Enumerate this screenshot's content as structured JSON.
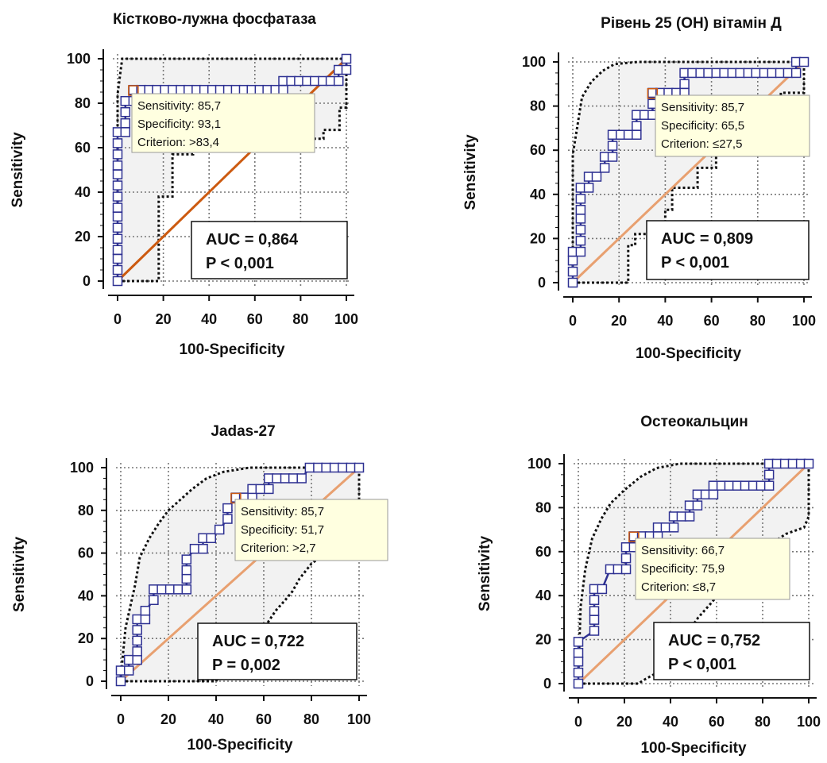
{
  "chart_data": [
    {
      "type": "line",
      "title": "Кістково-лужна фосфатаза",
      "xlabel": "100-Specificity",
      "ylabel": "Sensitivity",
      "xlim": [
        0,
        100
      ],
      "ylim": [
        0,
        100
      ],
      "ticks": [
        "0",
        "20",
        "40",
        "60",
        "80",
        "100"
      ],
      "grid": true,
      "roc": [
        [
          0,
          0
        ],
        [
          0,
          5
        ],
        [
          0,
          10
        ],
        [
          0,
          14
        ],
        [
          0,
          19
        ],
        [
          0,
          24
        ],
        [
          0,
          29
        ],
        [
          0,
          33
        ],
        [
          0,
          38
        ],
        [
          0,
          43
        ],
        [
          0,
          48
        ],
        [
          0,
          52
        ],
        [
          0,
          57
        ],
        [
          0,
          62
        ],
        [
          0,
          67
        ],
        [
          3.4,
          67
        ],
        [
          3.4,
          71
        ],
        [
          3.4,
          76
        ],
        [
          3.4,
          81
        ],
        [
          6.9,
          81
        ],
        [
          6.9,
          86
        ],
        [
          10.3,
          86
        ],
        [
          13.8,
          86
        ],
        [
          17.2,
          86
        ],
        [
          20.7,
          86
        ],
        [
          24.1,
          86
        ],
        [
          27.6,
          86
        ],
        [
          31,
          86
        ],
        [
          34.5,
          86
        ],
        [
          37.9,
          86
        ],
        [
          41.4,
          86
        ],
        [
          44.8,
          86
        ],
        [
          48.3,
          86
        ],
        [
          51.7,
          86
        ],
        [
          55.2,
          86
        ],
        [
          58.6,
          86
        ],
        [
          62.1,
          86
        ],
        [
          65.5,
          86
        ],
        [
          69,
          86
        ],
        [
          72.4,
          86
        ],
        [
          72.4,
          90
        ],
        [
          75.9,
          90
        ],
        [
          79.3,
          90
        ],
        [
          82.8,
          90
        ],
        [
          86.2,
          90
        ],
        [
          89.7,
          90
        ],
        [
          93.1,
          90
        ],
        [
          96.6,
          90
        ],
        [
          96.6,
          95
        ],
        [
          100,
          95
        ],
        [
          100,
          100
        ]
      ],
      "ci_upper": [
        [
          0,
          31
        ],
        [
          0,
          84
        ],
        [
          2,
          100
        ],
        [
          100,
          100
        ]
      ],
      "ci_lower": [
        [
          0,
          0
        ],
        [
          18,
          0
        ],
        [
          18,
          38
        ],
        [
          24,
          38
        ],
        [
          24,
          57
        ],
        [
          33,
          57
        ],
        [
          33,
          60
        ],
        [
          72,
          60
        ],
        [
          72,
          64
        ],
        [
          90,
          64
        ],
        [
          90,
          68
        ],
        [
          97,
          68
        ],
        [
          97,
          78
        ],
        [
          100,
          78
        ],
        [
          100,
          100
        ]
      ],
      "tooltip": {
        "x": 6.9,
        "y": 85.7,
        "lines": [
          "Sensitivity: 85,7",
          "Specificity: 93,1",
          "Criterion: >83,4"
        ]
      },
      "auc_lines": [
        "AUC = 0,864",
        "P < 0,001"
      ]
    },
    {
      "type": "line",
      "title": "Рівень 25 (ОН) вітамін Д",
      "xlabel": "100-Specificity",
      "ylabel": "Sensitivity",
      "xlim": [
        0,
        100
      ],
      "ylim": [
        0,
        100
      ],
      "ticks": [
        "0",
        "20",
        "40",
        "60",
        "80",
        "100"
      ],
      "grid": true,
      "roc": [
        [
          0,
          0
        ],
        [
          0,
          5
        ],
        [
          0,
          10
        ],
        [
          0,
          14
        ],
        [
          3.4,
          14
        ],
        [
          3.4,
          19
        ],
        [
          3.4,
          24
        ],
        [
          3.4,
          29
        ],
        [
          3.4,
          33
        ],
        [
          3.4,
          38
        ],
        [
          3.4,
          43
        ],
        [
          6.9,
          43
        ],
        [
          6.9,
          48
        ],
        [
          10.3,
          48
        ],
        [
          13.8,
          52
        ],
        [
          13.8,
          57
        ],
        [
          17.2,
          57
        ],
        [
          17.2,
          62
        ],
        [
          17.2,
          67
        ],
        [
          20.7,
          67
        ],
        [
          24.1,
          67
        ],
        [
          27.6,
          67
        ],
        [
          27.6,
          71
        ],
        [
          27.6,
          76
        ],
        [
          31,
          76
        ],
        [
          34.5,
          76
        ],
        [
          34.5,
          81
        ],
        [
          34.5,
          86
        ],
        [
          37.9,
          86
        ],
        [
          41.4,
          86
        ],
        [
          44.8,
          86
        ],
        [
          48.3,
          86
        ],
        [
          48.3,
          90
        ],
        [
          48.3,
          95
        ],
        [
          51.7,
          95
        ],
        [
          55.2,
          95
        ],
        [
          58.6,
          95
        ],
        [
          62.1,
          95
        ],
        [
          65.5,
          95
        ],
        [
          69,
          95
        ],
        [
          72.4,
          95
        ],
        [
          75.9,
          95
        ],
        [
          79.3,
          95
        ],
        [
          82.8,
          95
        ],
        [
          86.2,
          95
        ],
        [
          89.7,
          95
        ],
        [
          93.1,
          95
        ],
        [
          96.6,
          95
        ],
        [
          96.6,
          100
        ],
        [
          100,
          100
        ]
      ],
      "ci_upper": [
        [
          0,
          7
        ],
        [
          0,
          58
        ],
        [
          4,
          84
        ],
        [
          8,
          91
        ],
        [
          13,
          96
        ],
        [
          18,
          99
        ],
        [
          28,
          100
        ],
        [
          100,
          100
        ]
      ],
      "ci_lower": [
        [
          0,
          0
        ],
        [
          24,
          0
        ],
        [
          24,
          17
        ],
        [
          27,
          17
        ],
        [
          27,
          22
        ],
        [
          40,
          22
        ],
        [
          40,
          33
        ],
        [
          43,
          33
        ],
        [
          43,
          43
        ],
        [
          54,
          43
        ],
        [
          54,
          52
        ],
        [
          62,
          52
        ],
        [
          62,
          63
        ],
        [
          67,
          63
        ],
        [
          67,
          71
        ],
        [
          76,
          71
        ],
        [
          76,
          78
        ],
        [
          90,
          78
        ],
        [
          90,
          86
        ],
        [
          100,
          86
        ],
        [
          100,
          100
        ]
      ],
      "tooltip": {
        "x": 34.5,
        "y": 85.7,
        "lines": [
          "Sensitivity: 85,7",
          "Specificity: 65,5",
          "Criterion: ≤27,5"
        ]
      },
      "auc_lines": [
        "AUC = 0,809",
        "P < 0,001"
      ]
    },
    {
      "type": "line",
      "title": "Jadas-27",
      "xlabel": "100-Specificity",
      "ylabel": "Sensitivity",
      "xlim": [
        0,
        100
      ],
      "ylim": [
        0,
        100
      ],
      "ticks": [
        "0",
        "20",
        "40",
        "60",
        "80",
        "100"
      ],
      "grid": true,
      "roc": [
        [
          0,
          0
        ],
        [
          0,
          5
        ],
        [
          3.4,
          5
        ],
        [
          3.4,
          10
        ],
        [
          6.9,
          10
        ],
        [
          6.9,
          14
        ],
        [
          6.9,
          19
        ],
        [
          6.9,
          24
        ],
        [
          6.9,
          29
        ],
        [
          10.3,
          29
        ],
        [
          10.3,
          33
        ],
        [
          13.8,
          38
        ],
        [
          13.8,
          43
        ],
        [
          17.2,
          43
        ],
        [
          20.7,
          43
        ],
        [
          24.1,
          43
        ],
        [
          27.6,
          43
        ],
        [
          27.6,
          48
        ],
        [
          27.6,
          52
        ],
        [
          27.6,
          57
        ],
        [
          31,
          62
        ],
        [
          34.5,
          62
        ],
        [
          34.5,
          67
        ],
        [
          37.9,
          67
        ],
        [
          41.4,
          71
        ],
        [
          44.8,
          76
        ],
        [
          44.8,
          81
        ],
        [
          48.3,
          86
        ],
        [
          51.7,
          86
        ],
        [
          55.2,
          86
        ],
        [
          55.2,
          90
        ],
        [
          58.6,
          90
        ],
        [
          62.1,
          90
        ],
        [
          62.1,
          95
        ],
        [
          65.5,
          95
        ],
        [
          69,
          95
        ],
        [
          72.4,
          95
        ],
        [
          75.9,
          95
        ],
        [
          79.3,
          100
        ],
        [
          82.8,
          100
        ],
        [
          86.2,
          100
        ],
        [
          89.7,
          100
        ],
        [
          93.1,
          100
        ],
        [
          96.6,
          100
        ],
        [
          100,
          100
        ]
      ],
      "ci_upper": [
        [
          0,
          2
        ],
        [
          2,
          25
        ],
        [
          6,
          45
        ],
        [
          8,
          58
        ],
        [
          12,
          67
        ],
        [
          16,
          74
        ],
        [
          20,
          80
        ],
        [
          26,
          86
        ],
        [
          30,
          90
        ],
        [
          36,
          95
        ],
        [
          43,
          98
        ],
        [
          54,
          100
        ],
        [
          100,
          100
        ]
      ],
      "ci_lower": [
        [
          0,
          0
        ],
        [
          40,
          0
        ],
        [
          43,
          6
        ],
        [
          47,
          6
        ],
        [
          47,
          11
        ],
        [
          53,
          11
        ],
        [
          53,
          17
        ],
        [
          56,
          17
        ],
        [
          60,
          24
        ],
        [
          62,
          28
        ],
        [
          65,
          33
        ],
        [
          69,
          38
        ],
        [
          72,
          42
        ],
        [
          75,
          48
        ],
        [
          80,
          55
        ],
        [
          86,
          60
        ],
        [
          92,
          68
        ],
        [
          100,
          72
        ],
        [
          100,
          100
        ]
      ],
      "tooltip": {
        "x": 48.3,
        "y": 85.7,
        "lines": [
          "Sensitivity: 85,7",
          "Specificity: 51,7",
          "Criterion: >2,7"
        ]
      },
      "auc_lines": [
        "AUC = 0,722",
        "P = 0,002"
      ]
    },
    {
      "type": "line",
      "title": "Остеокальцин",
      "xlabel": "100-Specificity",
      "ylabel": "Sensitivity",
      "xlim": [
        0,
        100
      ],
      "ylim": [
        0,
        100
      ],
      "ticks": [
        "0",
        "20",
        "40",
        "60",
        "80",
        "100"
      ],
      "grid": true,
      "roc": [
        [
          0,
          0
        ],
        [
          0,
          5
        ],
        [
          0,
          10
        ],
        [
          0,
          14
        ],
        [
          0,
          19
        ],
        [
          6.9,
          24
        ],
        [
          6.9,
          29
        ],
        [
          6.9,
          33
        ],
        [
          6.9,
          38
        ],
        [
          6.9,
          43
        ],
        [
          10.3,
          43
        ],
        [
          13.8,
          52
        ],
        [
          17.2,
          52
        ],
        [
          20.7,
          52
        ],
        [
          20.7,
          57
        ],
        [
          20.7,
          62
        ],
        [
          24.1,
          62
        ],
        [
          24.1,
          67
        ],
        [
          27.6,
          67
        ],
        [
          31,
          67
        ],
        [
          34.5,
          67
        ],
        [
          34.5,
          71
        ],
        [
          37.9,
          71
        ],
        [
          41.4,
          71
        ],
        [
          41.4,
          76
        ],
        [
          44.8,
          76
        ],
        [
          48.3,
          76
        ],
        [
          48.3,
          81
        ],
        [
          51.7,
          81
        ],
        [
          51.7,
          86
        ],
        [
          55.2,
          86
        ],
        [
          58.6,
          86
        ],
        [
          58.6,
          90
        ],
        [
          62.1,
          90
        ],
        [
          65.5,
          90
        ],
        [
          69,
          90
        ],
        [
          72.4,
          90
        ],
        [
          75.9,
          90
        ],
        [
          79.3,
          90
        ],
        [
          82.8,
          90
        ],
        [
          82.8,
          95
        ],
        [
          82.8,
          100
        ],
        [
          86.2,
          100
        ],
        [
          89.7,
          100
        ],
        [
          93.1,
          100
        ],
        [
          96.6,
          100
        ],
        [
          100,
          100
        ]
      ],
      "ci_upper": [
        [
          0,
          5
        ],
        [
          1,
          35
        ],
        [
          3,
          52
        ],
        [
          6,
          66
        ],
        [
          10,
          75
        ],
        [
          14,
          82
        ],
        [
          20,
          88
        ],
        [
          27,
          94
        ],
        [
          34,
          98
        ],
        [
          44,
          100
        ],
        [
          100,
          100
        ]
      ],
      "ci_lower": [
        [
          0,
          0
        ],
        [
          26,
          0
        ],
        [
          29,
          2
        ],
        [
          36,
          6
        ],
        [
          36,
          12
        ],
        [
          44,
          18
        ],
        [
          48,
          24
        ],
        [
          52,
          30
        ],
        [
          58,
          37
        ],
        [
          64,
          45
        ],
        [
          70,
          52
        ],
        [
          76,
          58
        ],
        [
          83,
          63
        ],
        [
          90,
          68
        ],
        [
          98,
          71
        ],
        [
          100,
          76
        ],
        [
          100,
          100
        ]
      ],
      "tooltip": {
        "x": 24.1,
        "y": 66.7,
        "lines": [
          "Sensitivity: 66,7",
          "Specificity: 75,9",
          "Criterion: ≤8,7"
        ]
      },
      "auc_lines": [
        "AUC = 0,752",
        "P < 0,001"
      ]
    }
  ],
  "colors": {
    "roc_line": "#2e3192",
    "marker_fill": "#ffffff",
    "marker_stroke": "#2e3192",
    "diagonal": "#e8a070",
    "diagonal_highlight": "#cc5a10",
    "ci_band_fill": "#f2f2f2",
    "ci_line": "#111111",
    "grid": "#777777",
    "tooltip_fill": "#ffffe0",
    "tooltip_stroke": "#999999"
  }
}
